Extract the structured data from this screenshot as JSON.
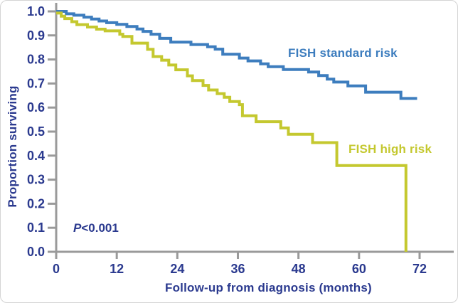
{
  "chart_data": {
    "type": "line",
    "subtype": "kaplan-meier-step",
    "title": "",
    "xlabel": "Follow-up from diagnosis (months)",
    "ylabel": "Proportion surviving",
    "xlim": [
      0,
      78.8
    ],
    "ylim": [
      0.0,
      1.0
    ],
    "x_ticks": [
      0,
      12,
      24,
      36,
      48,
      60,
      72
    ],
    "y_ticks": [
      "0.0",
      "0.1",
      "0.2",
      "0.3",
      "0.4",
      "0.5",
      "0.6",
      "0.7",
      "0.8",
      "0.9",
      "1.0"
    ],
    "grid": false,
    "legend_position": "inline-labels",
    "annotation": {
      "prefix": "P",
      "text": "<0.001"
    },
    "series": [
      {
        "name": "FISH standard risk",
        "color": "#3d7dbe",
        "points": [
          [
            0,
            1.0
          ],
          [
            2,
            0.99
          ],
          [
            3.5,
            0.984
          ],
          [
            5.5,
            0.976
          ],
          [
            7,
            0.968
          ],
          [
            8.5,
            0.96
          ],
          [
            10,
            0.953
          ],
          [
            12,
            0.946
          ],
          [
            14,
            0.937
          ],
          [
            16,
            0.927
          ],
          [
            17.2,
            0.917
          ],
          [
            18.8,
            0.905
          ],
          [
            20.5,
            0.888
          ],
          [
            22.7,
            0.872
          ],
          [
            26.7,
            0.862
          ],
          [
            30,
            0.853
          ],
          [
            31.5,
            0.843
          ],
          [
            33,
            0.822
          ],
          [
            36.3,
            0.806
          ],
          [
            38,
            0.794
          ],
          [
            40.5,
            0.782
          ],
          [
            42,
            0.77
          ],
          [
            45,
            0.758
          ],
          [
            50,
            0.748
          ],
          [
            52,
            0.733
          ],
          [
            53.7,
            0.718
          ],
          [
            55,
            0.706
          ],
          [
            57.8,
            0.69
          ],
          [
            61.3,
            0.664
          ],
          [
            68.3,
            0.638
          ],
          [
            71.5,
            0.638
          ]
        ]
      },
      {
        "name": "FISH high risk",
        "color": "#c4c82f",
        "points": [
          [
            0,
            0.993
          ],
          [
            1,
            0.98
          ],
          [
            1.7,
            0.97
          ],
          [
            3.1,
            0.957
          ],
          [
            4.1,
            0.945
          ],
          [
            6.2,
            0.935
          ],
          [
            8,
            0.926
          ],
          [
            9.7,
            0.919
          ],
          [
            12.6,
            0.905
          ],
          [
            13.2,
            0.896
          ],
          [
            15,
            0.868
          ],
          [
            18.1,
            0.842
          ],
          [
            19.2,
            0.812
          ],
          [
            20.9,
            0.797
          ],
          [
            22.3,
            0.777
          ],
          [
            23.7,
            0.757
          ],
          [
            26,
            0.732
          ],
          [
            27,
            0.712
          ],
          [
            29.1,
            0.692
          ],
          [
            30.2,
            0.673
          ],
          [
            31.9,
            0.658
          ],
          [
            33.3,
            0.643
          ],
          [
            34.4,
            0.625
          ],
          [
            36.3,
            0.612
          ],
          [
            36.9,
            0.566
          ],
          [
            39.6,
            0.541
          ],
          [
            44.5,
            0.515
          ],
          [
            46,
            0.489
          ],
          [
            50.8,
            0.454
          ],
          [
            55.6,
            0.359
          ],
          [
            69.3,
            0.0
          ]
        ]
      }
    ],
    "colors": {
      "axis": "#9a9a9a",
      "text": "#2b3a8f",
      "standard_risk": "#3d7dbe",
      "high_risk": "#c4c82f",
      "background": "#ffffff"
    }
  }
}
